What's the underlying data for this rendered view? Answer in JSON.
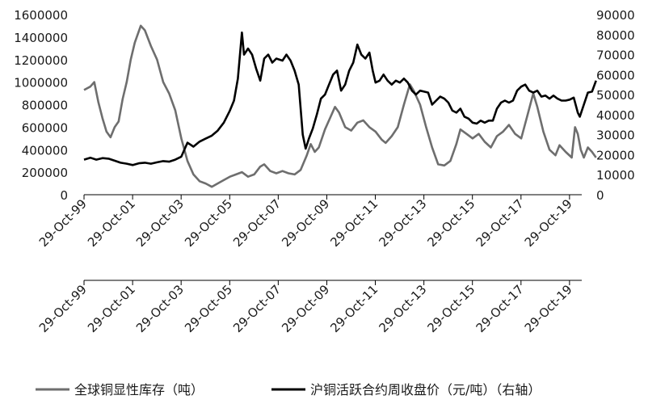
{
  "chart_data": {
    "type": "line",
    "title": "",
    "y_left": {
      "min": 0,
      "max": 1600000,
      "ticks": [
        "1600000",
        "1400000",
        "1200000",
        "1000000",
        "800000",
        "600000",
        "400000",
        "200000",
        "0"
      ]
    },
    "y_right": {
      "min": 0,
      "max": 90000,
      "ticks": [
        "90000",
        "80000",
        "70000",
        "60000",
        "50000",
        "40000",
        "30000",
        "20000",
        "10000",
        "0"
      ]
    },
    "x_axis": {
      "start": "1999-10-29",
      "end": "2020-04-30",
      "tick_labels": [
        "29-Oct-99",
        "29-Oct-01",
        "29-Oct-03",
        "29-Oct-05",
        "29-Oct-07",
        "29-Oct-09",
        "29-Oct-11",
        "29-Oct-13",
        "29-Oct-15",
        "29-Oct-17",
        "29-Oct-19"
      ]
    },
    "legend": {
      "placement": "bottom"
    },
    "series": [
      {
        "name": "全球铜显性库存（吨）",
        "axis": "left",
        "color": "#6e6e6e",
        "points": [
          [
            "1999-10-29",
            930000
          ],
          [
            "2000-02-01",
            960000
          ],
          [
            "2000-04-01",
            1000000
          ],
          [
            "2000-06-01",
            820000
          ],
          [
            "2000-08-01",
            680000
          ],
          [
            "2000-10-01",
            560000
          ],
          [
            "2000-12-01",
            510000
          ],
          [
            "2001-02-01",
            600000
          ],
          [
            "2001-04-01",
            650000
          ],
          [
            "2001-06-01",
            850000
          ],
          [
            "2001-08-01",
            1000000
          ],
          [
            "2001-10-01",
            1200000
          ],
          [
            "2001-12-01",
            1350000
          ],
          [
            "2002-03-01",
            1500000
          ],
          [
            "2002-05-01",
            1460000
          ],
          [
            "2002-08-01",
            1320000
          ],
          [
            "2002-11-01",
            1200000
          ],
          [
            "2003-02-01",
            1000000
          ],
          [
            "2003-05-01",
            900000
          ],
          [
            "2003-08-01",
            750000
          ],
          [
            "2003-11-01",
            500000
          ],
          [
            "2004-02-01",
            300000
          ],
          [
            "2004-05-01",
            180000
          ],
          [
            "2004-08-01",
            120000
          ],
          [
            "2004-11-01",
            100000
          ],
          [
            "2005-02-01",
            70000
          ],
          [
            "2005-05-01",
            100000
          ],
          [
            "2005-08-01",
            130000
          ],
          [
            "2005-11-01",
            160000
          ],
          [
            "2006-02-01",
            180000
          ],
          [
            "2006-05-01",
            200000
          ],
          [
            "2006-08-01",
            160000
          ],
          [
            "2006-11-01",
            180000
          ],
          [
            "2007-02-01",
            250000
          ],
          [
            "2007-04-01",
            270000
          ],
          [
            "2007-07-01",
            210000
          ],
          [
            "2007-10-01",
            190000
          ],
          [
            "2008-01-01",
            210000
          ],
          [
            "2008-04-01",
            190000
          ],
          [
            "2008-07-01",
            180000
          ],
          [
            "2008-10-01",
            220000
          ],
          [
            "2009-01-01",
            350000
          ],
          [
            "2009-03-01",
            450000
          ],
          [
            "2009-05-01",
            380000
          ],
          [
            "2009-07-01",
            420000
          ],
          [
            "2009-10-01",
            580000
          ],
          [
            "2010-01-01",
            700000
          ],
          [
            "2010-03-01",
            780000
          ],
          [
            "2010-05-01",
            730000
          ],
          [
            "2010-08-01",
            600000
          ],
          [
            "2010-11-01",
            570000
          ],
          [
            "2011-02-01",
            640000
          ],
          [
            "2011-05-01",
            660000
          ],
          [
            "2011-08-01",
            600000
          ],
          [
            "2011-11-01",
            560000
          ],
          [
            "2012-02-01",
            490000
          ],
          [
            "2012-04-01",
            460000
          ],
          [
            "2012-07-01",
            520000
          ],
          [
            "2012-10-01",
            600000
          ],
          [
            "2013-01-01",
            800000
          ],
          [
            "2013-04-01",
            980000
          ],
          [
            "2013-06-01",
            920000
          ],
          [
            "2013-09-01",
            800000
          ],
          [
            "2013-12-01",
            600000
          ],
          [
            "2014-03-01",
            420000
          ],
          [
            "2014-06-01",
            270000
          ],
          [
            "2014-09-01",
            260000
          ],
          [
            "2014-12-01",
            300000
          ],
          [
            "2015-03-01",
            450000
          ],
          [
            "2015-05-01",
            580000
          ],
          [
            "2015-08-01",
            540000
          ],
          [
            "2015-11-01",
            500000
          ],
          [
            "2016-02-01",
            540000
          ],
          [
            "2016-05-01",
            470000
          ],
          [
            "2016-08-01",
            420000
          ],
          [
            "2016-11-01",
            520000
          ],
          [
            "2017-02-01",
            560000
          ],
          [
            "2017-05-01",
            620000
          ],
          [
            "2017-08-01",
            540000
          ],
          [
            "2017-11-01",
            500000
          ],
          [
            "2018-02-01",
            700000
          ],
          [
            "2018-05-01",
            900000
          ],
          [
            "2018-07-01",
            780000
          ],
          [
            "2018-10-01",
            560000
          ],
          [
            "2019-01-01",
            400000
          ],
          [
            "2019-04-01",
            350000
          ],
          [
            "2019-06-01",
            440000
          ],
          [
            "2019-09-01",
            380000
          ],
          [
            "2019-12-01",
            330000
          ],
          [
            "2020-01-20",
            600000
          ],
          [
            "2020-03-01",
            540000
          ],
          [
            "2020-04-15",
            400000
          ],
          [
            "2020-06-01",
            330000
          ],
          [
            "2020-08-01",
            420000
          ],
          [
            "2020-10-01",
            380000
          ],
          [
            "2020-12-01",
            330000
          ]
        ]
      },
      {
        "name": "沪铜活跃合约周收盘价（元/吨）（右轴）",
        "axis": "right",
        "color": "#000000",
        "points": [
          [
            "1999-10-29",
            17500
          ],
          [
            "2000-02-01",
            18500
          ],
          [
            "2000-05-01",
            17500
          ],
          [
            "2000-08-01",
            18300
          ],
          [
            "2000-11-01",
            18000
          ],
          [
            "2001-02-01",
            17000
          ],
          [
            "2001-05-01",
            16000
          ],
          [
            "2001-08-01",
            15500
          ],
          [
            "2001-11-01",
            14800
          ],
          [
            "2002-02-01",
            15700
          ],
          [
            "2002-05-01",
            16000
          ],
          [
            "2002-08-01",
            15500
          ],
          [
            "2002-11-01",
            16200
          ],
          [
            "2003-02-01",
            16800
          ],
          [
            "2003-05-01",
            16500
          ],
          [
            "2003-08-01",
            17500
          ],
          [
            "2003-11-01",
            19000
          ],
          [
            "2004-02-01",
            26000
          ],
          [
            "2004-05-01",
            24000
          ],
          [
            "2004-08-01",
            26500
          ],
          [
            "2004-11-01",
            28000
          ],
          [
            "2005-02-01",
            29500
          ],
          [
            "2005-05-01",
            32000
          ],
          [
            "2005-08-01",
            36000
          ],
          [
            "2005-11-01",
            42000
          ],
          [
            "2006-01-01",
            47000
          ],
          [
            "2006-03-01",
            58000
          ],
          [
            "2006-05-01",
            81000
          ],
          [
            "2006-06-01",
            70000
          ],
          [
            "2006-08-01",
            73000
          ],
          [
            "2006-10-01",
            70000
          ],
          [
            "2006-12-01",
            63000
          ],
          [
            "2007-02-01",
            57000
          ],
          [
            "2007-04-01",
            68000
          ],
          [
            "2007-06-01",
            70000
          ],
          [
            "2007-08-01",
            66000
          ],
          [
            "2007-10-01",
            68000
          ],
          [
            "2008-01-01",
            67000
          ],
          [
            "2008-03-01",
            70000
          ],
          [
            "2008-05-01",
            67000
          ],
          [
            "2008-07-01",
            62000
          ],
          [
            "2008-09-01",
            55000
          ],
          [
            "2008-11-01",
            30000
          ],
          [
            "2008-12-15",
            23000
          ],
          [
            "2009-02-01",
            28000
          ],
          [
            "2009-04-01",
            33000
          ],
          [
            "2009-06-01",
            40000
          ],
          [
            "2009-08-01",
            48000
          ],
          [
            "2009-10-01",
            50000
          ],
          [
            "2009-12-01",
            55000
          ],
          [
            "2010-02-01",
            60000
          ],
          [
            "2010-04-01",
            62000
          ],
          [
            "2010-06-01",
            52000
          ],
          [
            "2010-08-01",
            55000
          ],
          [
            "2010-10-01",
            62000
          ],
          [
            "2010-12-01",
            66000
          ],
          [
            "2011-02-01",
            75000
          ],
          [
            "2011-04-01",
            70000
          ],
          [
            "2011-06-01",
            68000
          ],
          [
            "2011-08-01",
            71000
          ],
          [
            "2011-09-20",
            62000
          ],
          [
            "2011-11-01",
            56000
          ],
          [
            "2012-01-01",
            57000
          ],
          [
            "2012-03-01",
            60000
          ],
          [
            "2012-05-01",
            57000
          ],
          [
            "2012-07-01",
            55000
          ],
          [
            "2012-09-01",
            57000
          ],
          [
            "2012-11-01",
            56000
          ],
          [
            "2013-01-01",
            58000
          ],
          [
            "2013-03-01",
            56000
          ],
          [
            "2013-05-01",
            52000
          ],
          [
            "2013-07-01",
            50000
          ],
          [
            "2013-09-01",
            52000
          ],
          [
            "2013-11-01",
            51500
          ],
          [
            "2014-01-01",
            51000
          ],
          [
            "2014-03-01",
            45000
          ],
          [
            "2014-05-01",
            47000
          ],
          [
            "2014-07-01",
            49000
          ],
          [
            "2014-09-01",
            48000
          ],
          [
            "2014-11-01",
            46000
          ],
          [
            "2015-01-01",
            42000
          ],
          [
            "2015-03-01",
            41000
          ],
          [
            "2015-05-01",
            43000
          ],
          [
            "2015-07-01",
            39000
          ],
          [
            "2015-09-01",
            38000
          ],
          [
            "2015-11-01",
            36000
          ],
          [
            "2016-01-01",
            35500
          ],
          [
            "2016-03-01",
            37000
          ],
          [
            "2016-05-01",
            36000
          ],
          [
            "2016-07-01",
            37000
          ],
          [
            "2016-09-01",
            37000
          ],
          [
            "2016-11-01",
            43000
          ],
          [
            "2017-01-01",
            46000
          ],
          [
            "2017-03-01",
            47000
          ],
          [
            "2017-05-01",
            46000
          ],
          [
            "2017-07-01",
            47000
          ],
          [
            "2017-09-01",
            52000
          ],
          [
            "2017-11-01",
            54000
          ],
          [
            "2018-01-01",
            55000
          ],
          [
            "2018-03-01",
            52000
          ],
          [
            "2018-05-01",
            51000
          ],
          [
            "2018-07-01",
            52000
          ],
          [
            "2018-09-01",
            49000
          ],
          [
            "2018-11-01",
            49500
          ],
          [
            "2019-01-01",
            48000
          ],
          [
            "2019-03-01",
            49500
          ],
          [
            "2019-05-01",
            48000
          ],
          [
            "2019-07-01",
            47000
          ],
          [
            "2019-09-01",
            47000
          ],
          [
            "2019-11-01",
            47500
          ],
          [
            "2020-01-01",
            48500
          ],
          [
            "2020-03-01",
            41000
          ],
          [
            "2020-04-01",
            39000
          ],
          [
            "2020-06-01",
            45000
          ],
          [
            "2020-08-01",
            51000
          ],
          [
            "2020-10-01",
            51500
          ],
          [
            "2020-12-01",
            57000
          ]
        ]
      }
    ]
  }
}
